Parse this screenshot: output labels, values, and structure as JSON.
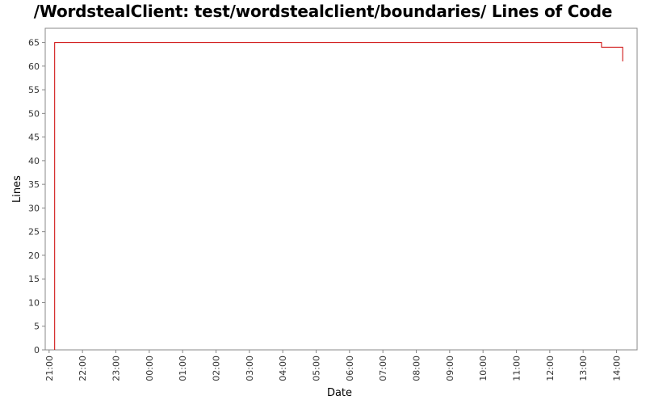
{
  "chart_data": {
    "type": "line",
    "title": "/WordstealClient: test/wordstealclient/boundaries/ Lines of Code",
    "xlabel": "Date",
    "ylabel": "Lines",
    "x_ticks": [
      "21:00",
      "22:00",
      "23:00",
      "00:00",
      "01:00",
      "02:00",
      "03:00",
      "04:00",
      "05:00",
      "06:00",
      "07:00",
      "08:00",
      "09:00",
      "10:00",
      "11:00",
      "12:00",
      "13:00",
      "14:00"
    ],
    "y_ticks": [
      "0",
      "5",
      "10",
      "15",
      "20",
      "25",
      "30",
      "35",
      "40",
      "45",
      "50",
      "55",
      "60",
      "65"
    ],
    "ylim": [
      0,
      68
    ],
    "xlim": [
      "20:53",
      "14:37"
    ],
    "series": [
      {
        "color": "#cc0000",
        "step": true,
        "points": [
          {
            "x": "21:10",
            "y": 0
          },
          {
            "x": "21:10",
            "y": 65
          },
          {
            "x": "13:33",
            "y": 65
          },
          {
            "x": "13:33",
            "y": 64
          },
          {
            "x": "14:11",
            "y": 64
          },
          {
            "x": "14:11",
            "y": 61
          }
        ]
      }
    ],
    "grid": false,
    "background": "#ffffff",
    "line_color": "#cc0000"
  }
}
